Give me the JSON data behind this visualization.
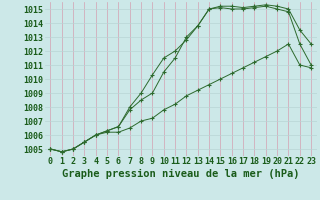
{
  "title": "Graphe pression niveau de la mer (hPa)",
  "x_labels": [
    "0",
    "1",
    "2",
    "3",
    "4",
    "5",
    "6",
    "7",
    "8",
    "9",
    "10",
    "11",
    "12",
    "13",
    "14",
    "15",
    "16",
    "17",
    "18",
    "19",
    "20",
    "21",
    "22",
    "23"
  ],
  "ylim": [
    1004.5,
    1015.5
  ],
  "yticks": [
    1005,
    1006,
    1007,
    1008,
    1009,
    1010,
    1011,
    1012,
    1013,
    1014,
    1015
  ],
  "line1": [
    1005.0,
    1004.8,
    1005.0,
    1005.5,
    1006.0,
    1006.3,
    1006.6,
    1008.0,
    1009.0,
    1010.3,
    1011.5,
    1012.0,
    1012.8,
    1013.8,
    1015.0,
    1015.1,
    1015.0,
    1015.0,
    1015.1,
    1015.2,
    1015.0,
    1014.8,
    1012.5,
    1011.0
  ],
  "line2": [
    1005.0,
    1004.8,
    1005.0,
    1005.5,
    1006.0,
    1006.3,
    1006.6,
    1007.8,
    1008.5,
    1009.0,
    1010.5,
    1011.5,
    1013.0,
    1013.8,
    1015.0,
    1015.2,
    1015.2,
    1015.1,
    1015.2,
    1015.3,
    1015.2,
    1015.0,
    1013.5,
    1012.5
  ],
  "line3": [
    1005.0,
    1004.8,
    1005.0,
    1005.5,
    1006.0,
    1006.2,
    1006.2,
    1006.5,
    1007.0,
    1007.2,
    1007.8,
    1008.2,
    1008.8,
    1009.2,
    1009.6,
    1010.0,
    1010.4,
    1010.8,
    1011.2,
    1011.6,
    1012.0,
    1012.5,
    1011.0,
    1010.8
  ],
  "line_color": "#2d6a2d",
  "bg_color": "#cce8e8",
  "grid_color_v": "#d4a0b0",
  "grid_color_h": "#b8d4d4",
  "title_color": "#1a5c1a",
  "title_fontsize": 7.5,
  "tick_fontsize": 6.0
}
